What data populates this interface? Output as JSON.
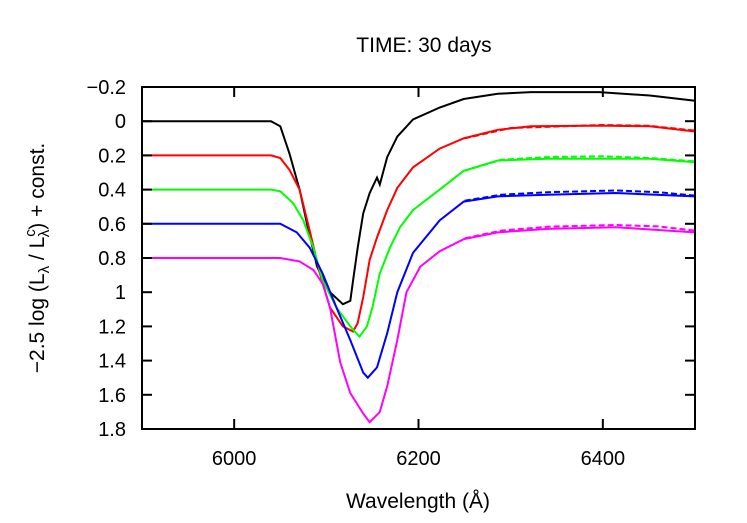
{
  "chart_data": {
    "type": "line",
    "title": "TIME: 30 days",
    "xlabel": "Wavelength (Å)",
    "ylabel": "−2.5 log (Lλ / Lcλ) + const.",
    "ylabel_parts": [
      "−2.5 log (L",
      "λ",
      " / L",
      "c",
      "λ",
      ") + const."
    ],
    "xlim": [
      5900,
      6500
    ],
    "ylim": [
      -0.2,
      1.8
    ],
    "y_inverted": true,
    "grid": false,
    "xticks": [
      6000,
      6200,
      6400
    ],
    "xtick_labels": [
      "6000",
      "6200",
      "6400"
    ],
    "yticks": [
      -0.2,
      0,
      0.2,
      0.4,
      0.6,
      0.8,
      1,
      1.2,
      1.4,
      1.6,
      1.8
    ],
    "ytick_labels": [
      "−0.2",
      "0",
      "0.2",
      "0.4",
      "0.6",
      "0.8",
      "1",
      "1.2",
      "1.4",
      "1.6",
      "1.8"
    ],
    "series": [
      {
        "color": "#000000",
        "style": "solid",
        "x": [
          5900,
          6040,
          6050,
          6060,
          6071,
          6079,
          6090,
          6104,
          6118,
          6126,
          6129,
          6134,
          6140,
          6147,
          6155,
          6158,
          6166,
          6177,
          6194,
          6223,
          6249,
          6286,
          6322,
          6396,
          6451,
          6500
        ],
        "y": [
          0,
          0,
          0.03,
          0.19,
          0.4,
          0.6,
          0.85,
          1.0,
          1.07,
          1.05,
          0.93,
          0.74,
          0.54,
          0.42,
          0.33,
          0.37,
          0.21,
          0.09,
          -0.01,
          -0.08,
          -0.13,
          -0.16,
          -0.17,
          -0.17,
          -0.15,
          -0.12
        ]
      },
      {
        "color": "#ff0000",
        "style": "solid",
        "x": [
          5900,
          6040,
          6050,
          6060,
          6071,
          6082,
          6093,
          6104,
          6118,
          6129,
          6134,
          6140,
          6147,
          6155,
          6166,
          6177,
          6194,
          6223,
          6249,
          6286,
          6322,
          6396,
          6451,
          6500
        ],
        "y": [
          0.2,
          0.2,
          0.215,
          0.285,
          0.4,
          0.64,
          0.89,
          1.09,
          1.2,
          1.23,
          1.18,
          1.03,
          0.81,
          0.68,
          0.52,
          0.39,
          0.27,
          0.16,
          0.1,
          0.05,
          0.03,
          0.026,
          0.03,
          0.06
        ]
      },
      {
        "color": "#00ff00",
        "style": "solid",
        "x": [
          5900,
          6040,
          6050,
          6064,
          6075,
          6086,
          6096,
          6111,
          6126,
          6136,
          6144,
          6150,
          6158,
          6169,
          6180,
          6194,
          6223,
          6249,
          6286,
          6340,
          6451,
          6500
        ],
        "y": [
          0.4,
          0.4,
          0.41,
          0.48,
          0.58,
          0.74,
          0.93,
          1.09,
          1.2,
          1.26,
          1.2,
          1.09,
          0.89,
          0.74,
          0.62,
          0.52,
          0.4,
          0.29,
          0.23,
          0.22,
          0.22,
          0.24
        ]
      },
      {
        "color": "#0000ff",
        "style": "solid",
        "x": [
          5900,
          6040,
          6050,
          6068,
          6082,
          6096,
          6111,
          6126,
          6140,
          6145,
          6155,
          6166,
          6177,
          6194,
          6223,
          6249,
          6286,
          6340,
          6414,
          6500
        ],
        "y": [
          0.6,
          0.6,
          0.6,
          0.65,
          0.74,
          0.89,
          1.09,
          1.28,
          1.47,
          1.5,
          1.44,
          1.24,
          1.0,
          0.77,
          0.58,
          0.47,
          0.44,
          0.43,
          0.42,
          0.44
        ]
      },
      {
        "color": "#ff00ff",
        "style": "solid",
        "x": [
          5900,
          6040,
          6050,
          6071,
          6086,
          6096,
          6104,
          6115,
          6126,
          6140,
          6147,
          6158,
          6166,
          6177,
          6187,
          6202,
          6223,
          6249,
          6286,
          6340,
          6414,
          6500
        ],
        "y": [
          0.8,
          0.8,
          0.8,
          0.82,
          0.87,
          0.95,
          1.09,
          1.41,
          1.59,
          1.71,
          1.76,
          1.7,
          1.55,
          1.28,
          1.0,
          0.85,
          0.76,
          0.69,
          0.65,
          0.63,
          0.62,
          0.65
        ]
      },
      {
        "color": "#ff0000",
        "style": "dashed",
        "x": [
          6250,
          6300,
          6400,
          6450,
          6500
        ],
        "y": [
          0.1,
          0.04,
          0.022,
          0.027,
          0.055
        ]
      },
      {
        "color": "#00ff00",
        "style": "dashed",
        "x": [
          6250,
          6290,
          6340,
          6400,
          6451,
          6500
        ],
        "y": [
          0.29,
          0.225,
          0.21,
          0.205,
          0.215,
          0.235
        ]
      },
      {
        "color": "#0000ff",
        "style": "dashed",
        "x": [
          6250,
          6290,
          6340,
          6414,
          6460,
          6500
        ],
        "y": [
          0.465,
          0.43,
          0.415,
          0.405,
          0.415,
          0.435
        ]
      },
      {
        "color": "#ff00ff",
        "style": "dashed",
        "x": [
          6250,
          6290,
          6340,
          6414,
          6460,
          6500
        ],
        "y": [
          0.685,
          0.64,
          0.617,
          0.607,
          0.615,
          0.64
        ]
      }
    ]
  }
}
